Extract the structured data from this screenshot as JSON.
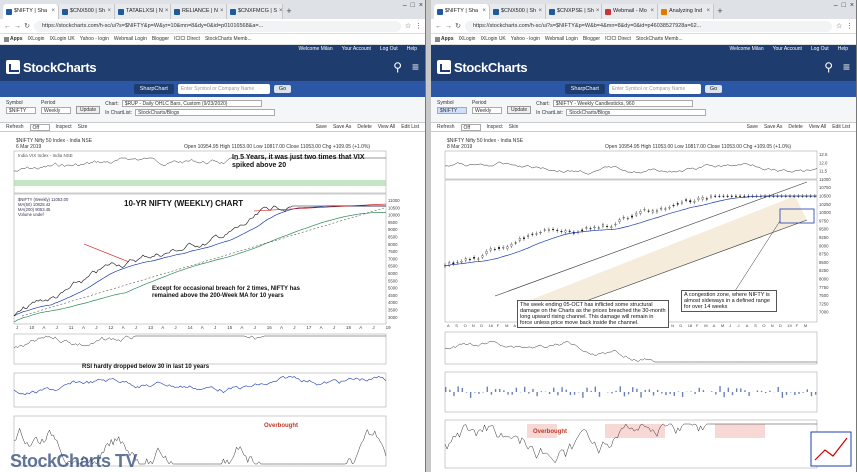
{
  "left": {
    "tabs": [
      "$NIFTY | Sha",
      "$CNX500 | Sh",
      "TATAELXSI | N",
      "RELIANCE | N",
      "$CNXFMCG | S"
    ],
    "url": "https://stockcharts.com/h-sc/ui?s=$NIFTY&p=W&yr=10&mn=8&dy=0&id=p01016568&a=...",
    "symbol_label": "Symbol",
    "symbol_value": "$NIFTY",
    "period_label": "Period",
    "period_value": "Weekly",
    "update_label": "Update",
    "chart_label": "Chart:",
    "chart_value": "$RUP - Daily OHLC Bars, Custom (9/23/2020)",
    "inchartlist_label": "In ChartList:",
    "inchartlist_value": "StockCharts/Blogs",
    "chart_title": "$NIFTY Nifty 50 Index - India NSE",
    "chart_date": "6 Mar 2019",
    "chart_ohlc": "Open 10954.95  High 11053.00  Low 10817.00  Close 11053.00  Chg +109.05 (+1.0%)",
    "vix_label": "India VIX Index - India NSE",
    "annotation_vix": "In 5 Years, it was just two times that VIX spiked above 20",
    "annotation_title": "10-YR NIFTY (WEEKLY) CHART",
    "annotation_ma": "Except for occasional breach for 2 times, NIFTY has remained above the 200-Week MA for 10 years",
    "annotation_rsi": "RSI hardly dropped below 30 in last 10 years",
    "overbought_label": "Overbought",
    "x_ticks": [
      "J",
      "10",
      "A",
      "J",
      "11",
      "A",
      "J",
      "12",
      "A",
      "J",
      "13",
      "A",
      "J",
      "14",
      "A",
      "J",
      "15",
      "A",
      "J",
      "16",
      "A",
      "J",
      "17",
      "A",
      "J",
      "18",
      "A",
      "J",
      "19"
    ],
    "price_ticks": [
      "11000",
      "10500",
      "10000",
      "9500",
      "9000",
      "8500",
      "8000",
      "7500",
      "7000",
      "6500",
      "6000",
      "5500",
      "5000",
      "4500",
      "4000",
      "3500",
      "3000"
    ],
    "legend": [
      "$NIFTY (Weekly) 11053.00",
      "MA(50) 10828.42",
      "MA(200) 9053.45",
      "Volume undef"
    ],
    "toolbar": [
      "Refresh",
      "Off",
      "Inspect",
      "Size",
      "Save",
      "Save As",
      "Delete",
      "View All",
      "Edit List"
    ],
    "watermark": "StockCharts TV"
  },
  "right": {
    "tabs": [
      "$NIFTY | Sha",
      "$CNX500 | Sh",
      "$CNXPSE | Sh",
      "Webmail - Mo",
      "Analyzing Ind"
    ],
    "url": "https://stockcharts.com/h-sc/ui?s=$NIFTY&p=W&b=4&mn=8&dy=0&id=p46038527928a=62...",
    "symbol_label": "Symbol",
    "symbol_value": "$NIFTY",
    "period_label": "Period",
    "period_value": "Weekly",
    "update_label": "Update",
    "chart_label": "Chart:",
    "chart_value": "$NIFTY - Weekly Candlesticks, 960",
    "inchartlist_label": "In ChartList:",
    "inchartlist_value": "StockCharts/Blogs",
    "chart_title": "$NIFTY Nifty 50 Index - India NSE",
    "chart_date": "8 Mar 2019",
    "chart_ohlc": "Open 10954.95  High 11053.00  Low 10817.00  Close 11053.00  Chg +109.05 (+1.0%)",
    "annotation_channel": "The week ending 05-OCT has inflicted some structural damage on the Charts as the prices breached the 30-month long upward rising channel. This damage will remain in force unless price move back inside the channel.",
    "annotation_zone": "A congestion zone, where NIFTY is almost sideways in a defined range for over 14 weeks",
    "overbought_label": "Overbought",
    "x_ticks": [
      "A",
      "S",
      "O",
      "N",
      "D",
      "16",
      "F",
      "M",
      "A",
      "M",
      "J",
      "J",
      "A",
      "S",
      "O",
      "N",
      "D",
      "17",
      "F",
      "M",
      "A",
      "M",
      "J",
      "J",
      "A",
      "S",
      "O",
      "N",
      "D",
      "18",
      "F",
      "M",
      "A",
      "M",
      "J",
      "J",
      "A",
      "S",
      "O",
      "N",
      "D",
      "19",
      "F",
      "M"
    ],
    "price_ticks": [
      "12.5",
      "12.0",
      "11.5",
      "11000",
      "10750",
      "10500",
      "10250",
      "10000",
      "9750",
      "9500",
      "9250",
      "9000",
      "8750",
      "8500",
      "8250",
      "8000",
      "7750",
      "7500",
      "7250",
      "7000"
    ],
    "toolbar": [
      "Refresh",
      "Off",
      "Inspect",
      "Skin",
      "Save",
      "Save As",
      "Delete",
      "View All",
      "Edit List"
    ]
  },
  "common": {
    "bookmarks": [
      "Apps",
      "IXLogin",
      "IXLogin UK",
      "Yahoo - login",
      "Webmail Login",
      "Blogger",
      "ICICI Direct",
      "StockCharts Memb..."
    ],
    "topbar": [
      "Welcome Milan",
      "Your Account",
      "Log Out",
      "Help"
    ],
    "logo": "StockCharts",
    "sharpchart": "SharpChart",
    "search_placeholder": "Enter Symbol or Company Name",
    "go": "Go"
  }
}
